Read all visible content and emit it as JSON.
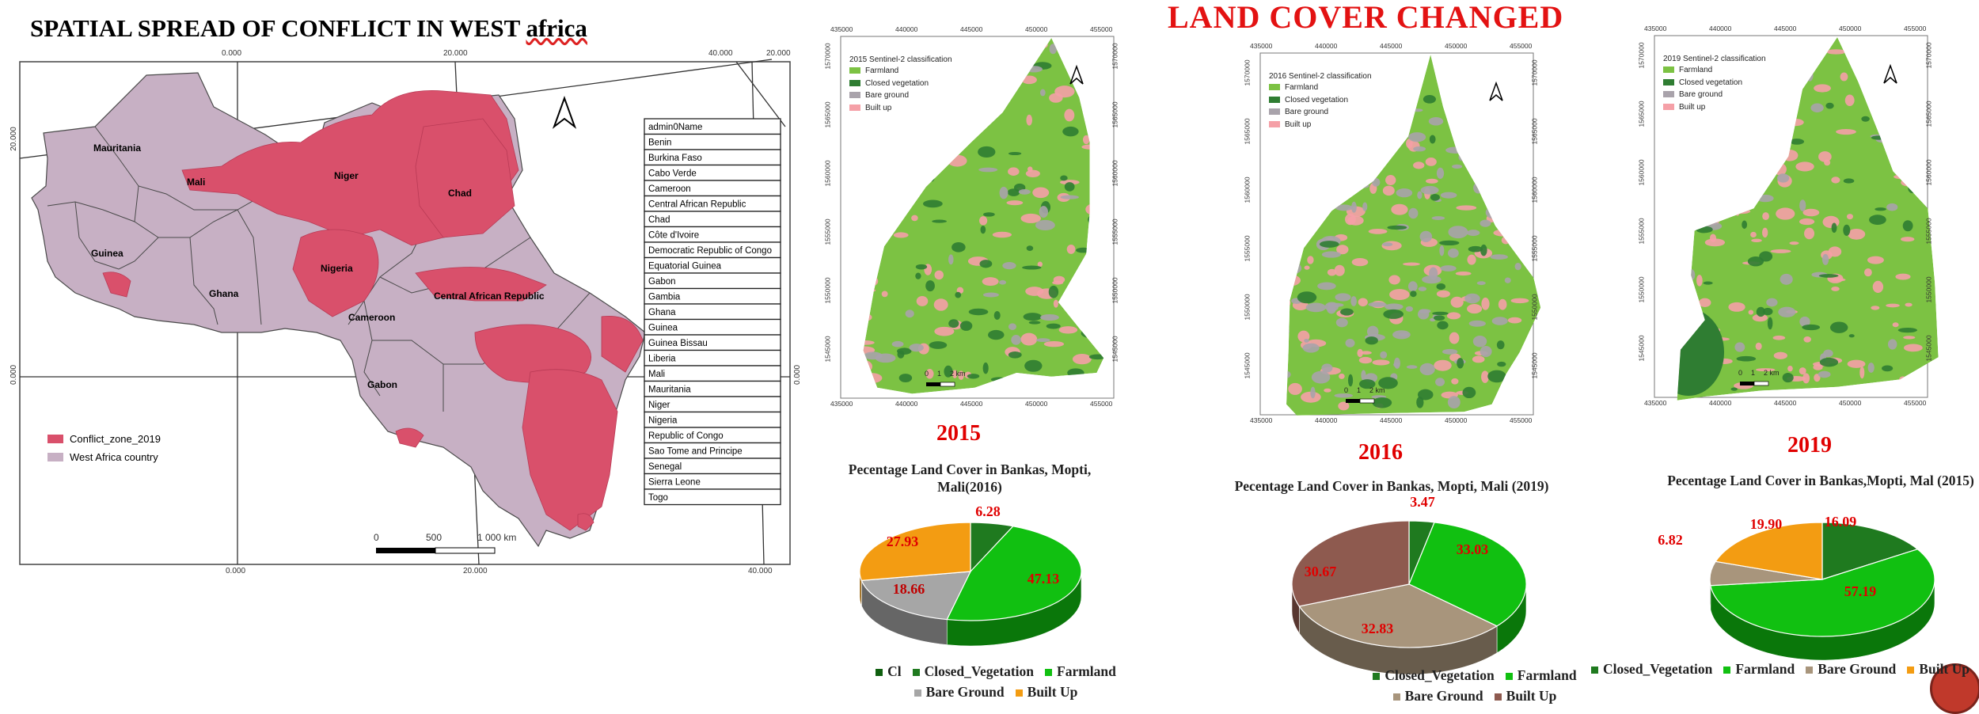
{
  "left_panel": {
    "title": "SPATIAL SPREAD OF CONFLICT IN WEST",
    "title_suffix": "africa",
    "top_ticks": [
      "0.000",
      "20.000",
      "40.000",
      "20.000"
    ],
    "bottom_ticks": [
      "0.000",
      "20.000",
      "40.000"
    ],
    "left_ticks": [
      "20.000",
      "0.000"
    ],
    "right_tick": "0.000",
    "map_labels": [
      "Mauritania",
      "Mali",
      "Niger",
      "Chad",
      "Guinea",
      "Nigeria",
      "Ghana",
      "Cameroon",
      "Central African Republic",
      "Gabon"
    ],
    "country_table": [
      "admin0Name",
      "Benin",
      "Burkina Faso",
      "Cabo Verde",
      "Cameroon",
      "Central African Republic",
      "Chad",
      "Côte d'Ivoire",
      "Democratic Republic of Congo",
      "Equatorial Guinea",
      "Gabon",
      "Gambia",
      "Ghana",
      "Guinea",
      "Guinea Bissau",
      "Liberia",
      "Mali",
      "Mauritania",
      "Niger",
      "Nigeria",
      "Republic of Congo",
      "Sao Tome and Principe",
      "Senegal",
      "Sierra Leone",
      "Togo"
    ],
    "legend": [
      {
        "label": "Conflict_zone_2019",
        "color": "#d9506b"
      },
      {
        "label": "West Africa country",
        "color": "#c7b0c4"
      }
    ],
    "scale_labels": [
      "0",
      "500",
      "1 000 km"
    ]
  },
  "landcover_title": "LAND COVER CHANGED",
  "maps": [
    {
      "legend_title": "2015 Sentinel-2 classification",
      "year": "2015",
      "top_ticks": [
        "435000",
        "440000",
        "445000",
        "450000",
        "455000"
      ],
      "bottom_ticks": [
        "435000",
        "440000",
        "445000",
        "450000",
        "455000"
      ],
      "y_ticks": [
        "1570000",
        "1565000",
        "1560000",
        "1555000",
        "1550000",
        "1545000"
      ],
      "scale_labels": [
        "0",
        "1",
        "2 km"
      ]
    },
    {
      "legend_title": "2016 Sentinel-2 classification",
      "year": "2016",
      "top_ticks": [
        "435000",
        "440000",
        "445000",
        "450000",
        "455000"
      ],
      "bottom_ticks": [
        "435000",
        "440000",
        "445000",
        "450000",
        "455000"
      ],
      "y_ticks": [
        "1570000",
        "1565000",
        "1560000",
        "1555000",
        "1550000",
        "1545000"
      ],
      "scale_labels": [
        "0",
        "1",
        "2 km"
      ]
    },
    {
      "legend_title": "2019 Sentinel-2 classification",
      "year": "2019",
      "top_ticks": [
        "435000",
        "440000",
        "445000",
        "450000",
        "455000"
      ],
      "bottom_ticks": [
        "435000",
        "440000",
        "445000",
        "450000",
        "455000"
      ],
      "y_ticks": [
        "1570000",
        "1565000",
        "1560000",
        "1555000",
        "1550000",
        "1545000"
      ],
      "scale_labels": [
        "0",
        "1",
        "2 km"
      ]
    }
  ],
  "map_classes": [
    {
      "label": "Farmland",
      "color": "#7cc243"
    },
    {
      "label": "Closed vegetation",
      "color": "#2f7d32"
    },
    {
      "label": "Bare ground",
      "color": "#a9a3ab"
    },
    {
      "label": "Built up",
      "color": "#f5a0a7"
    }
  ],
  "chart_data": [
    {
      "type": "pie",
      "title": "Pecentage Land Cover in Bankas, Mopti, Mali(2016)",
      "slices": [
        {
          "label": "Closed_Vegetation",
          "value": 6.28,
          "color": "#1f7a1f"
        },
        {
          "label": "Farmland",
          "value": 47.13,
          "color": "#11c011"
        },
        {
          "label": "Bare Ground",
          "value": 18.66,
          "color": "#a6a6a6"
        },
        {
          "label": "Built Up",
          "value": 27.93,
          "color": "#f39c12"
        }
      ],
      "legend": [
        "Cl",
        "Closed_Vegetation",
        "Farmland",
        "Bare Ground",
        "Built Up"
      ],
      "legend_colors": [
        "#0f5f0f",
        "#1f7a1f",
        "#11c011",
        "#a6a6a6",
        "#f39c12"
      ]
    },
    {
      "type": "pie",
      "title": "Pecentage Land Cover in Bankas, Mopti, Mali (2019)",
      "slices": [
        {
          "label": "Closed_Vegetation",
          "value": 3.47,
          "color": "#1f7a1f"
        },
        {
          "label": "Farmland",
          "value": 33.03,
          "color": "#11c011"
        },
        {
          "label": "Bare Ground",
          "value": 32.83,
          "color": "#a8957c"
        },
        {
          "label": "Built Up",
          "value": 30.67,
          "color": "#8e5a4f"
        }
      ],
      "legend": [
        "Closed_Vegetation",
        "Farmland",
        "Bare Ground",
        "Built Up"
      ],
      "legend_colors": [
        "#1f7a1f",
        "#11c011",
        "#a8957c",
        "#8e5a4f"
      ]
    },
    {
      "type": "pie",
      "title": "Pecentage Land Cover in Bankas,Mopti, Mal (2015)",
      "slices": [
        {
          "label": "Closed_Vegetation",
          "value": 16.09,
          "color": "#1f7a1f"
        },
        {
          "label": "Farmland",
          "value": 57.19,
          "color": "#11c011"
        },
        {
          "label": "Bare Ground",
          "value": 6.82,
          "color": "#a8957c"
        },
        {
          "label": "Built Up",
          "value": 19.9,
          "color": "#f39c12"
        }
      ],
      "legend": [
        "Closed_Vegetation",
        "Farmland",
        "Bare Ground",
        "Built Up"
      ],
      "legend_colors": [
        "#1f7a1f",
        "#11c011",
        "#a8957c",
        "#f39c12"
      ]
    }
  ]
}
